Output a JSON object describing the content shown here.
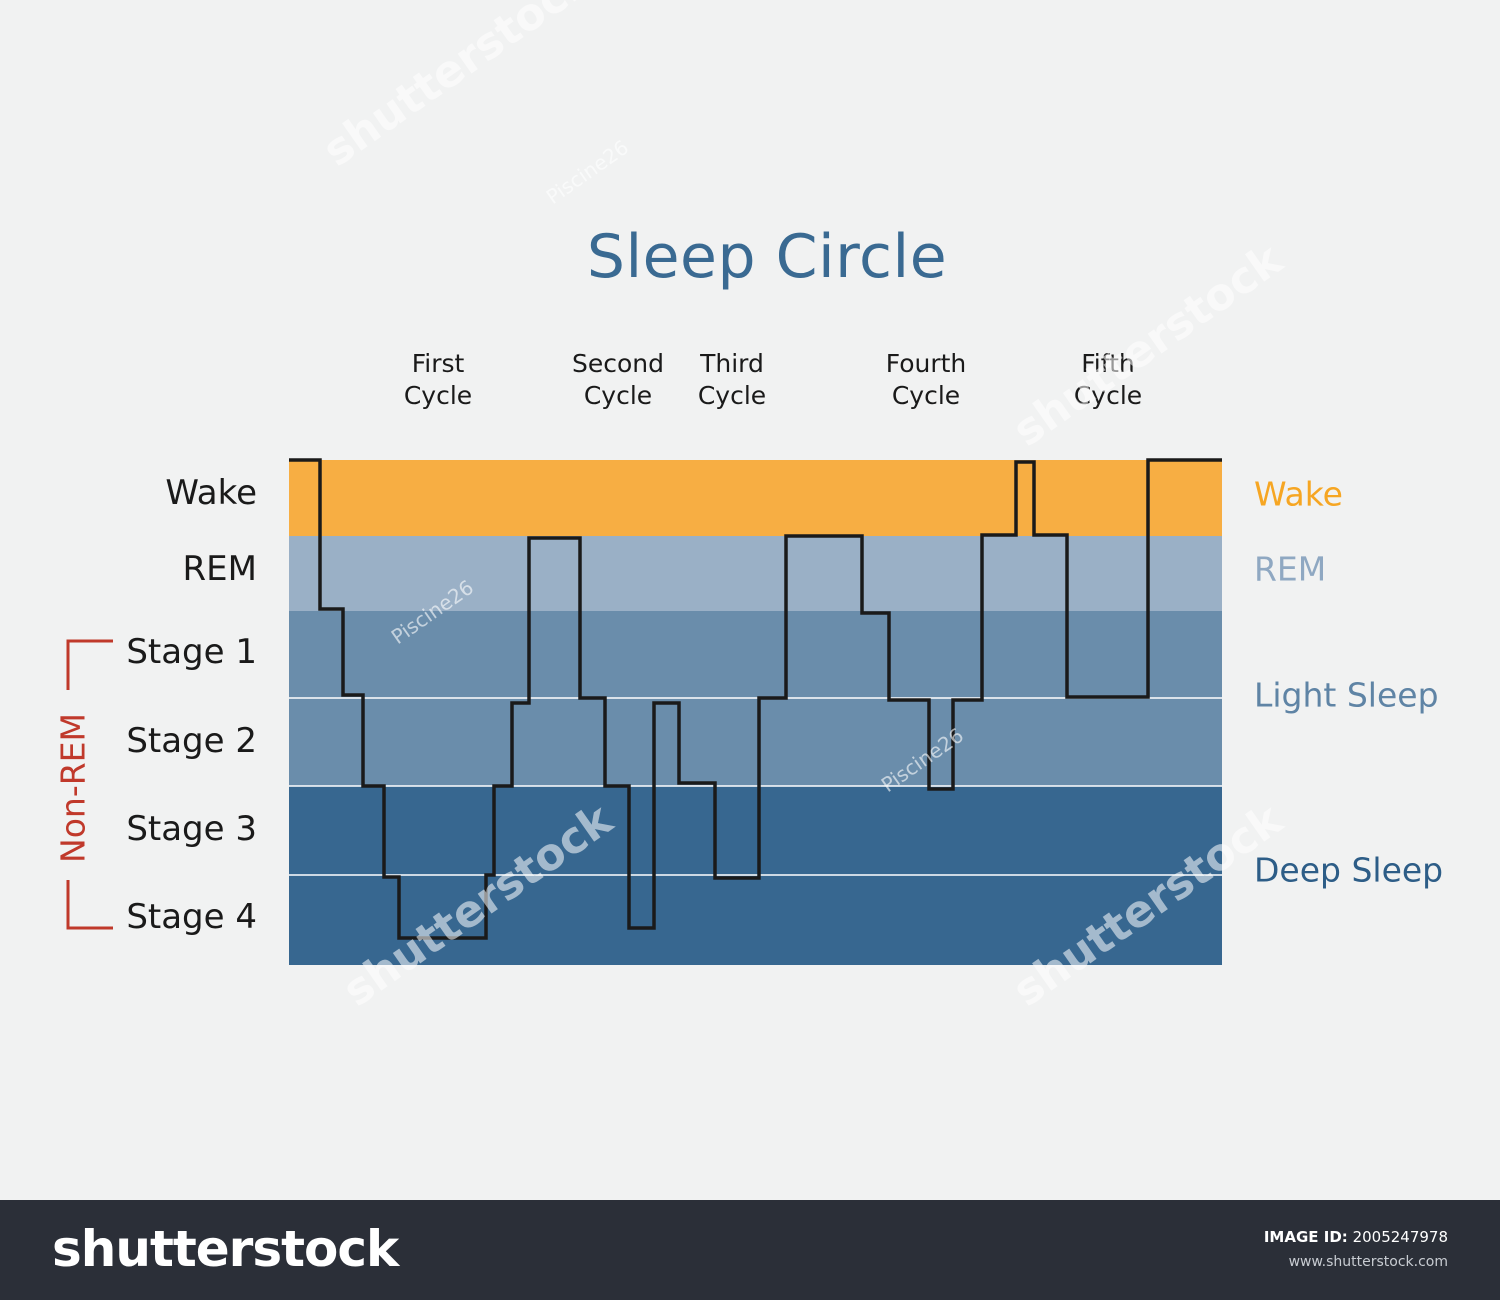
{
  "title": "Sleep Circle",
  "cycles": [
    {
      "line1": "First",
      "line2": "Cycle"
    },
    {
      "line1": "Second",
      "line2": "Cycle"
    },
    {
      "line1": "Third",
      "line2": "Cycle"
    },
    {
      "line1": "Fourth",
      "line2": "Cycle"
    },
    {
      "line1": "Fifth",
      "line2": "Cycle"
    }
  ],
  "stages": [
    "Wake",
    "REM",
    "Stage 1",
    "Stage 2",
    "Stage 3",
    "Stage 4"
  ],
  "group_label": "Non-REM",
  "zones": [
    {
      "label": "Wake",
      "color": "#f6a623"
    },
    {
      "label": "REM",
      "color": "#8fa8c2"
    },
    {
      "label": "Light Sleep",
      "color": "#5f84a5"
    },
    {
      "label": "Deep Sleep",
      "color": "#2d5d87"
    }
  ],
  "band_colors": {
    "wake": "#f7ae43",
    "rem": "#9ab0c6",
    "light": "#6a8dab",
    "deep": "#376790",
    "trace": "#1a1a1a",
    "bracket": "#c0392b"
  },
  "footer": {
    "brand": "shutterstock",
    "image_id_label": "IMAGE ID:",
    "image_id": "2005247978",
    "url": "www.shutterstock.com"
  },
  "watermarks": {
    "brand": "shutterstock",
    "author": "Piscine26"
  }
}
